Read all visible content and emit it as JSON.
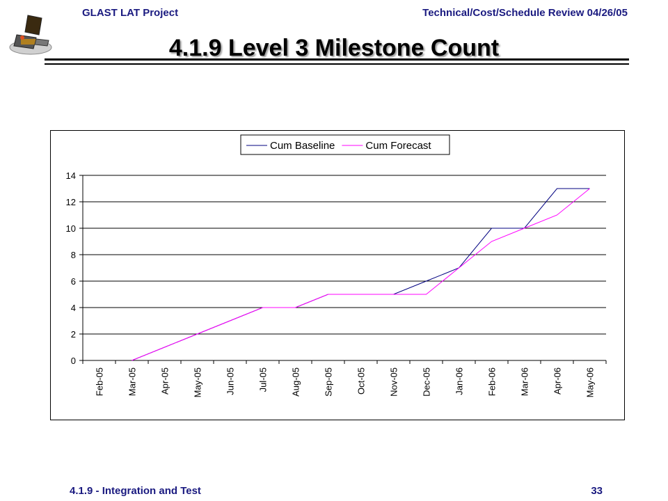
{
  "header": {
    "left": "GLAST LAT Project",
    "right": "Technical/Cost/Schedule Review 04/26/05"
  },
  "title": "4.1.9 Level 3 Milestone Count",
  "footer": {
    "left": "4.1.9 - Integration and Test",
    "page": "33"
  },
  "colors": {
    "header_text": "#1a1a80",
    "baseline": "#000080",
    "forecast": "#ff00ff"
  },
  "chart_data": {
    "type": "line",
    "title": "",
    "xlabel": "",
    "ylabel": "",
    "categories": [
      "Feb-05",
      "Mar-05",
      "Apr-05",
      "May-05",
      "Jun-05",
      "Jul-05",
      "Aug-05",
      "Sep-05",
      "Oct-05",
      "Nov-05",
      "Dec-05",
      "Jan-06",
      "Feb-06",
      "Mar-06",
      "Apr-06",
      "May-06"
    ],
    "series": [
      {
        "name": "Cum Baseline",
        "color": "#000080",
        "values": [
          null,
          0,
          1,
          2,
          3,
          4,
          4,
          5,
          5,
          5,
          6,
          7,
          10,
          10,
          13,
          13
        ]
      },
      {
        "name": "Cum Forecast",
        "color": "#ff00ff",
        "values": [
          null,
          0,
          1,
          2,
          3,
          4,
          4,
          5,
          5,
          5,
          5,
          7,
          9,
          10,
          11,
          13
        ]
      }
    ],
    "ylim": [
      0,
      14
    ],
    "yticks": [
      0,
      2,
      4,
      6,
      8,
      10,
      12,
      14
    ],
    "grid": true,
    "legend": "top"
  }
}
